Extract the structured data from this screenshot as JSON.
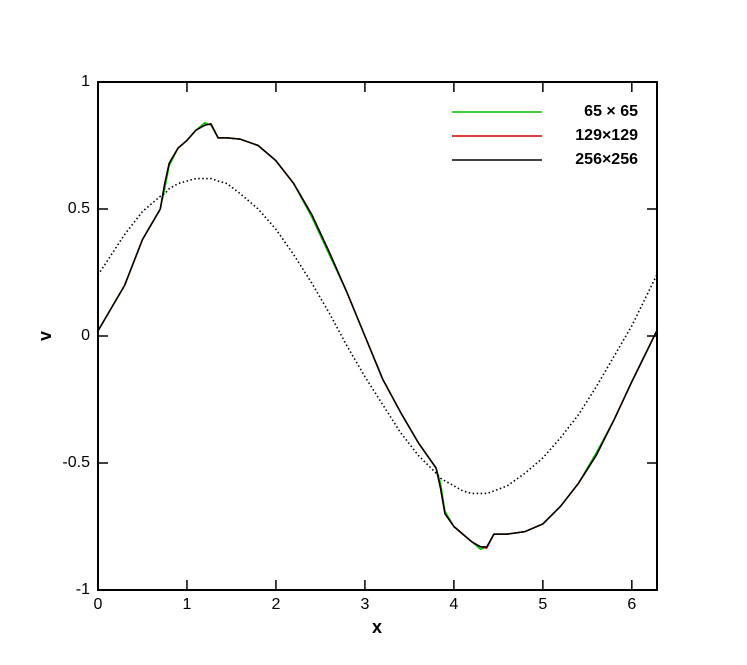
{
  "chart_data": {
    "type": "line",
    "xlabel": "x",
    "ylabel": "v",
    "xlim": [
      0,
      6.283
    ],
    "xticks": [
      0,
      1,
      2,
      3,
      4,
      5,
      6
    ],
    "ylim": [
      -1,
      1
    ],
    "yticks": [
      -1,
      -0.5,
      0,
      0.5,
      1
    ],
    "legend": "upper right",
    "x": [
      0,
      0.3,
      0.5,
      0.7,
      0.75,
      0.8,
      0.9,
      1.0,
      1.1,
      1.2,
      1.27,
      1.35,
      1.45,
      1.6,
      1.8,
      2.0,
      2.2,
      2.4,
      2.6,
      2.8,
      3.0,
      3.2,
      3.4,
      3.6,
      3.8,
      3.85,
      3.9,
      4.0,
      4.1,
      4.2,
      4.3,
      4.37,
      4.45,
      4.6,
      4.8,
      5.0,
      5.2,
      5.4,
      5.6,
      5.8,
      6.0,
      6.28
    ],
    "series": [
      {
        "name": "65 × 65",
        "color": "#00c000",
        "style": "solid",
        "values": [
          0.02,
          0.2,
          0.38,
          0.5,
          0.58,
          0.67,
          0.74,
          0.77,
          0.81,
          0.84,
          0.83,
          0.78,
          0.78,
          0.775,
          0.75,
          0.69,
          0.6,
          0.47,
          0.32,
          0.17,
          0.0,
          -0.17,
          -0.3,
          -0.42,
          -0.52,
          -0.58,
          -0.69,
          -0.75,
          -0.78,
          -0.81,
          -0.84,
          -0.83,
          -0.78,
          -0.78,
          -0.77,
          -0.74,
          -0.67,
          -0.58,
          -0.46,
          -0.33,
          -0.18,
          0.02
        ]
      },
      {
        "name": "129×129",
        "color": "#d00000",
        "style": "solid",
        "values": [
          0.02,
          0.2,
          0.38,
          0.5,
          0.6,
          0.68,
          0.74,
          0.77,
          0.81,
          0.83,
          0.835,
          0.78,
          0.78,
          0.775,
          0.75,
          0.69,
          0.6,
          0.48,
          0.33,
          0.17,
          0.0,
          -0.17,
          -0.3,
          -0.42,
          -0.52,
          -0.6,
          -0.7,
          -0.75,
          -0.78,
          -0.81,
          -0.83,
          -0.835,
          -0.78,
          -0.78,
          -0.77,
          -0.74,
          -0.67,
          -0.58,
          -0.47,
          -0.33,
          -0.18,
          0.02
        ]
      },
      {
        "name": "256×256",
        "color": "#000000",
        "style": "solid",
        "values": [
          0.02,
          0.2,
          0.38,
          0.5,
          0.6,
          0.68,
          0.74,
          0.77,
          0.81,
          0.83,
          0.835,
          0.78,
          0.78,
          0.775,
          0.75,
          0.69,
          0.6,
          0.48,
          0.33,
          0.17,
          0.0,
          -0.17,
          -0.3,
          -0.42,
          -0.52,
          -0.6,
          -0.7,
          -0.75,
          -0.78,
          -0.81,
          -0.83,
          -0.83,
          -0.78,
          -0.78,
          -0.77,
          -0.74,
          -0.67,
          -0.58,
          -0.47,
          -0.33,
          -0.18,
          0.02
        ]
      },
      {
        "color": "#000000",
        "style": "dotted",
        "values": [
          0.24,
          0.4,
          0.49,
          0.55,
          0.56,
          0.58,
          0.6,
          0.61,
          0.62,
          0.62,
          0.62,
          0.61,
          0.6,
          0.56,
          0.5,
          0.42,
          0.32,
          0.21,
          0.09,
          -0.04,
          -0.16,
          -0.27,
          -0.38,
          -0.47,
          -0.54,
          -0.56,
          -0.57,
          -0.59,
          -0.61,
          -0.62,
          -0.62,
          -0.62,
          -0.61,
          -0.59,
          -0.54,
          -0.48,
          -0.4,
          -0.31,
          -0.2,
          -0.08,
          0.04,
          0.24
        ]
      }
    ]
  }
}
